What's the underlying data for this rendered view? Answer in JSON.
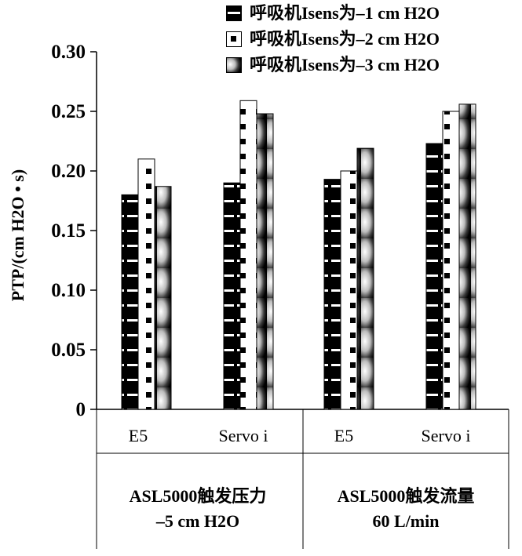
{
  "chart_data": {
    "type": "bar",
    "ylabel": "PTP/(cm H2O • s)",
    "ylim": [
      0,
      0.3
    ],
    "yticks": [
      "0",
      "0.05",
      "0.10",
      "0.15",
      "0.20",
      "0.25",
      "0.30"
    ],
    "categories": [
      "E5",
      "Servo i",
      "E5",
      "Servo i"
    ],
    "groups": [
      {
        "label_line1": "ASL5000触发压力",
        "label_line2": "–5 cm H2O"
      },
      {
        "label_line1": "ASL5000触发流量",
        "label_line2": "60 L/min"
      }
    ],
    "series": [
      {
        "name": "呼吸机Isens为–1 cm H2O",
        "values": [
          0.18,
          0.19,
          0.193,
          0.223
        ],
        "pattern": "black-hatched"
      },
      {
        "name": "呼吸机Isens为–2 cm H2O",
        "values": [
          0.21,
          0.259,
          0.2,
          0.25
        ],
        "pattern": "white-dotted"
      },
      {
        "name": "呼吸机Isens为–3 cm H2O",
        "values": [
          0.187,
          0.248,
          0.219,
          0.256
        ],
        "pattern": "gradient-sphere"
      }
    ],
    "grid": false,
    "legend_position": "top-right"
  }
}
